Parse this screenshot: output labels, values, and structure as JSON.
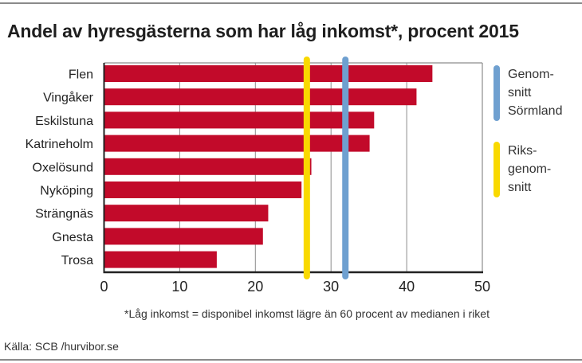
{
  "title": "Andel av hyresgästerna som har låg inkomst*, procent 2015",
  "footnote": "*Låg inkomst = disponibel inkomst lägre än 60 procent av medianen i riket",
  "source": "Källa: SCB /hurvibor.se",
  "chart_data": {
    "type": "bar",
    "orientation": "horizontal",
    "title": "Andel av hyresgästerna som har låg inkomst*, procent 2015",
    "xlabel": "",
    "ylabel": "",
    "xlim": [
      0,
      50
    ],
    "xticks": [
      0,
      10,
      20,
      30,
      40,
      50
    ],
    "grid": true,
    "categories": [
      "Flen",
      "Vingåker",
      "Eskilstuna",
      "Katrineholm",
      "Oxelösund",
      "Nyköping",
      "Strängnäs",
      "Gnesta",
      "Trosa"
    ],
    "values": [
      43.4,
      41.3,
      35.7,
      35.1,
      27.4,
      26.1,
      21.7,
      21.0,
      14.9
    ],
    "bar_color": "#c20a2a",
    "reference_lines": [
      {
        "name": "Genomsnitt Sörmland",
        "value": 31.9,
        "color": "#6fa0d0",
        "legend_lines": [
          "Genom-",
          "snitt",
          "Sörmland"
        ]
      },
      {
        "name": "Riksgenomsnitt",
        "value": 26.8,
        "color": "#f9d900",
        "legend_lines": [
          "Riks-",
          "genom-",
          "snitt"
        ]
      }
    ],
    "legend_position": "right"
  }
}
